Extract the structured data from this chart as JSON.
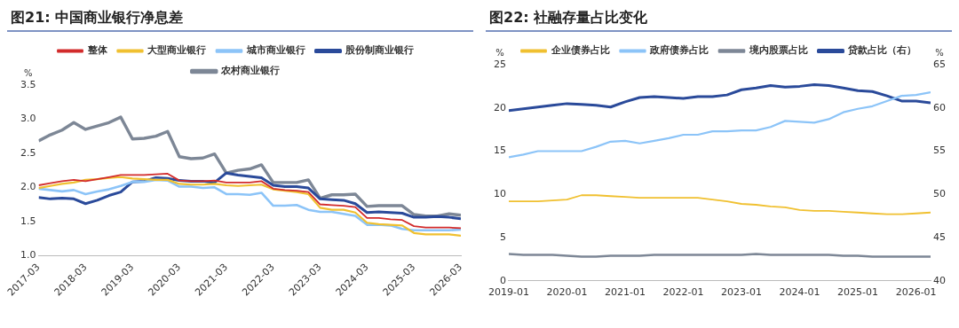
{
  "chart_data": [
    {
      "type": "line",
      "title": "图21: 中国商业银行净息差",
      "ylabel": "%",
      "legend": "top",
      "x": [
        "2017-03",
        "2017-06",
        "2017-09",
        "2017-12",
        "2018-03",
        "2018-06",
        "2018-09",
        "2018-12",
        "2019-03",
        "2019-06",
        "2019-09",
        "2019-12",
        "2020-03",
        "2020-06",
        "2020-09",
        "2020-12",
        "2021-03",
        "2021-06",
        "2021-09",
        "2021-12",
        "2022-03",
        "2022-06",
        "2022-09",
        "2022-12",
        "2023-03",
        "2023-06",
        "2023-09",
        "2023-12",
        "2024-03",
        "2024-06",
        "2024-09",
        "2024-12",
        "2025-03",
        "2025-06",
        "2025-09",
        "2025-12",
        "2026-03"
      ],
      "xlim": [
        "2017-03",
        "2026-03"
      ],
      "xticks": [
        "2017-03",
        "2018-03",
        "2019-03",
        "2020-03",
        "2021-03",
        "2022-03",
        "2023-03",
        "2024-03",
        "2025-03",
        "2026-03"
      ],
      "ylim": [
        1,
        3.5
      ],
      "yticks": [
        {
          "value": 1,
          "label": "1.0"
        },
        {
          "value": 1.5,
          "label": "1.5"
        },
        {
          "value": 2,
          "label": "2.0"
        },
        {
          "value": 2.5,
          "label": "2.5"
        },
        {
          "value": 3,
          "label": "3.0"
        },
        {
          "value": 3.5,
          "label": "3.5"
        }
      ],
      "series": [
        {
          "name": "整体",
          "color": "#d22b2b",
          "values": [
            2.03,
            2.06,
            2.09,
            2.11,
            2.09,
            2.12,
            2.15,
            2.18,
            2.18,
            2.18,
            2.19,
            2.2,
            2.1,
            2.09,
            2.09,
            2.1,
            2.07,
            2.07,
            2.07,
            2.09,
            1.98,
            1.96,
            1.95,
            1.93,
            1.75,
            1.74,
            1.73,
            1.71,
            1.55,
            1.55,
            1.53,
            1.52,
            1.43,
            1.41,
            1.41,
            1.41,
            1.4
          ]
        },
        {
          "name": "大型商业银行",
          "color": "#f0c030",
          "values": [
            1.99,
            2.02,
            2.05,
            2.07,
            2.11,
            2.12,
            2.14,
            2.15,
            2.13,
            2.12,
            2.11,
            2.11,
            2.05,
            2.04,
            2.04,
            2.05,
            2.03,
            2.02,
            2.03,
            2.04,
            1.97,
            1.95,
            1.93,
            1.9,
            1.7,
            1.67,
            1.67,
            1.63,
            1.48,
            1.46,
            1.45,
            1.44,
            1.33,
            1.31,
            1.31,
            1.31,
            1.29
          ]
        },
        {
          "name": "城市商业银行",
          "color": "#8cc4f8",
          "values": [
            1.98,
            1.96,
            1.94,
            1.96,
            1.9,
            1.94,
            1.97,
            2.02,
            2.08,
            2.08,
            2.11,
            2.1,
            2.01,
            2.01,
            1.99,
            2.0,
            1.9,
            1.9,
            1.89,
            1.92,
            1.73,
            1.73,
            1.74,
            1.67,
            1.64,
            1.64,
            1.61,
            1.58,
            1.45,
            1.45,
            1.44,
            1.39,
            1.37,
            1.37,
            1.37,
            1.37,
            1.38
          ]
        },
        {
          "name": "股份制商业银行",
          "color": "#2a4a9a",
          "values": [
            1.85,
            1.83,
            1.84,
            1.83,
            1.76,
            1.81,
            1.88,
            1.93,
            2.08,
            2.09,
            2.14,
            2.13,
            2.1,
            2.09,
            2.09,
            2.07,
            2.21,
            2.18,
            2.16,
            2.14,
            2.03,
            2.01,
            2.01,
            1.99,
            1.83,
            1.82,
            1.81,
            1.76,
            1.63,
            1.64,
            1.63,
            1.62,
            1.56,
            1.56,
            1.57,
            1.56,
            1.54
          ]
        },
        {
          "name": "农村商业银行",
          "color": "#7d8796",
          "values": [
            2.68,
            2.77,
            2.84,
            2.95,
            2.85,
            2.9,
            2.95,
            3.03,
            2.71,
            2.72,
            2.75,
            2.82,
            2.45,
            2.42,
            2.43,
            2.49,
            2.21,
            2.25,
            2.27,
            2.33,
            2.07,
            2.07,
            2.07,
            2.11,
            1.84,
            1.89,
            1.89,
            1.9,
            1.72,
            1.73,
            1.73,
            1.73,
            1.6,
            1.58,
            1.58,
            1.61,
            1.59
          ]
        }
      ]
    },
    {
      "type": "line",
      "title": "图22: 社融存量占比变化",
      "ylabel": "%",
      "y2label": "%",
      "legend": "top",
      "x": [
        "2019-01",
        "2019-04",
        "2019-07",
        "2019-10",
        "2020-01",
        "2020-04",
        "2020-07",
        "2020-10",
        "2021-01",
        "2021-04",
        "2021-07",
        "2021-10",
        "2022-01",
        "2022-04",
        "2022-07",
        "2022-10",
        "2023-01",
        "2023-04",
        "2023-07",
        "2023-10",
        "2024-01",
        "2024-04",
        "2024-07",
        "2024-10",
        "2025-01",
        "2025-04",
        "2025-07",
        "2025-10",
        "2026-01",
        "2026-04"
      ],
      "xlim": [
        "2019-01",
        "2026-04"
      ],
      "xticks": [
        "2019-01",
        "2020-01",
        "2021-01",
        "2022-01",
        "2023-01",
        "2024-01",
        "2025-01",
        "2026-01"
      ],
      "ylim": [
        0,
        25
      ],
      "yticks": [
        0,
        5,
        10,
        15,
        20,
        25
      ],
      "y2lim": [
        40,
        65
      ],
      "y2ticks": [
        40,
        45,
        50,
        55,
        60,
        65
      ],
      "series": [
        {
          "name": "企业债券占比",
          "color": "#f0c030",
          "values": [
            9.2,
            9.2,
            9.2,
            9.3,
            9.4,
            9.9,
            9.9,
            9.8,
            9.7,
            9.6,
            9.6,
            9.6,
            9.6,
            9.6,
            9.4,
            9.2,
            8.9,
            8.8,
            8.6,
            8.5,
            8.2,
            8.1,
            8.1,
            8.0,
            7.9,
            7.8,
            7.7,
            7.7,
            7.8,
            7.9
          ]
        },
        {
          "name": "政府债券占比",
          "color": "#8cc4f8",
          "values": [
            14.3,
            14.6,
            15.0,
            15.0,
            15.0,
            15.0,
            15.5,
            16.1,
            16.2,
            15.9,
            16.2,
            16.5,
            16.9,
            16.9,
            17.3,
            17.3,
            17.4,
            17.4,
            17.8,
            18.5,
            18.4,
            18.3,
            18.7,
            19.5,
            19.9,
            20.2,
            20.8,
            21.4,
            21.5,
            21.8
          ]
        },
        {
          "name": "境内股票占比",
          "color": "#7d8796",
          "values": [
            3.1,
            3.0,
            3.0,
            3.0,
            2.9,
            2.8,
            2.8,
            2.9,
            2.9,
            2.9,
            3.0,
            3.0,
            3.0,
            3.0,
            3.0,
            3.0,
            3.0,
            3.1,
            3.0,
            3.0,
            3.0,
            3.0,
            3.0,
            2.9,
            2.9,
            2.8,
            2.8,
            2.8,
            2.8,
            2.8
          ]
        },
        {
          "name": "贷款占比（右）",
          "color": "#2a4a9a",
          "axis": "y2",
          "values": [
            59.7,
            59.9,
            60.1,
            60.3,
            60.5,
            60.4,
            60.3,
            60.1,
            60.7,
            61.2,
            61.3,
            61.2,
            61.1,
            61.3,
            61.3,
            61.5,
            62.1,
            62.3,
            62.6,
            62.4,
            62.5,
            62.7,
            62.6,
            62.3,
            62.0,
            61.9,
            61.4,
            60.8,
            60.8,
            60.6
          ]
        }
      ]
    }
  ]
}
